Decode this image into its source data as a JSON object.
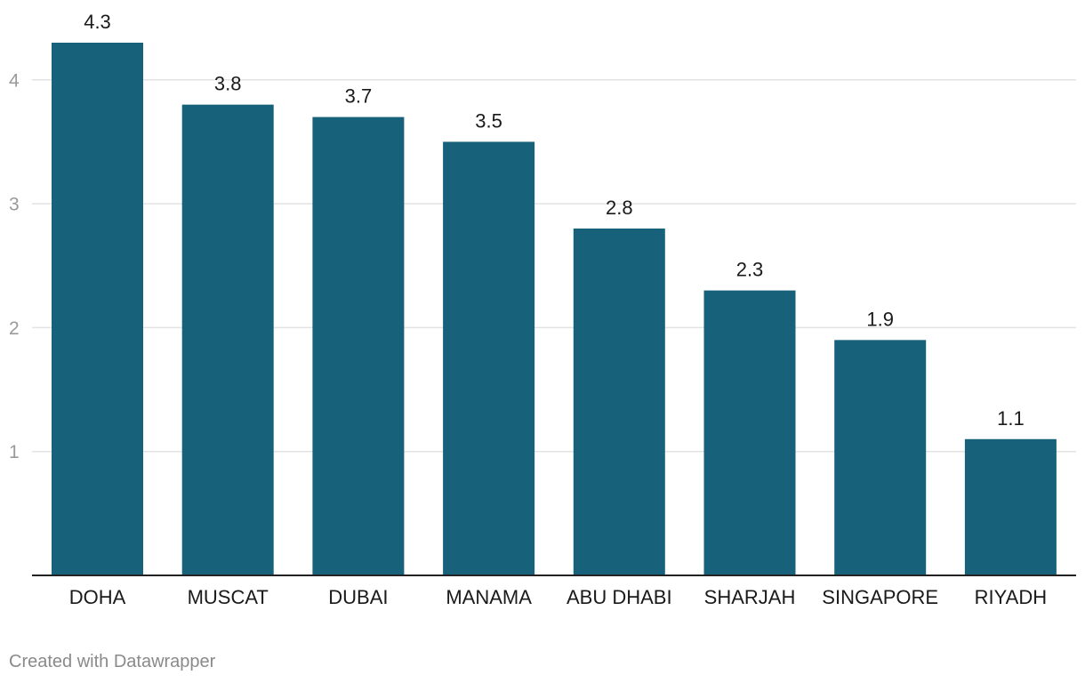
{
  "chart_data": {
    "type": "bar",
    "categories": [
      "DOHA",
      "MUSCAT",
      "DUBAI",
      "MANAMA",
      "ABU DHABI",
      "SHARJAH",
      "SINGAPORE",
      "RIYADH"
    ],
    "values": [
      4.3,
      3.8,
      3.7,
      3.5,
      2.8,
      2.3,
      1.9,
      1.1
    ],
    "value_labels": [
      "4.3",
      "3.8",
      "3.7",
      "3.5",
      "2.8",
      "2.3",
      "1.9",
      "1.1"
    ],
    "title": "",
    "xlabel": "",
    "ylabel": "",
    "ylim": [
      0,
      4.3
    ],
    "yticks": [
      1,
      2,
      3,
      4
    ],
    "ytick_labels": [
      "1",
      "2",
      "3",
      "4"
    ],
    "grid": true,
    "legend": "none",
    "colors": {
      "bar": "#17627a",
      "grid": "#e3e3e3",
      "axis": "#222222"
    }
  },
  "footer": {
    "credit": "Created with Datawrapper"
  }
}
